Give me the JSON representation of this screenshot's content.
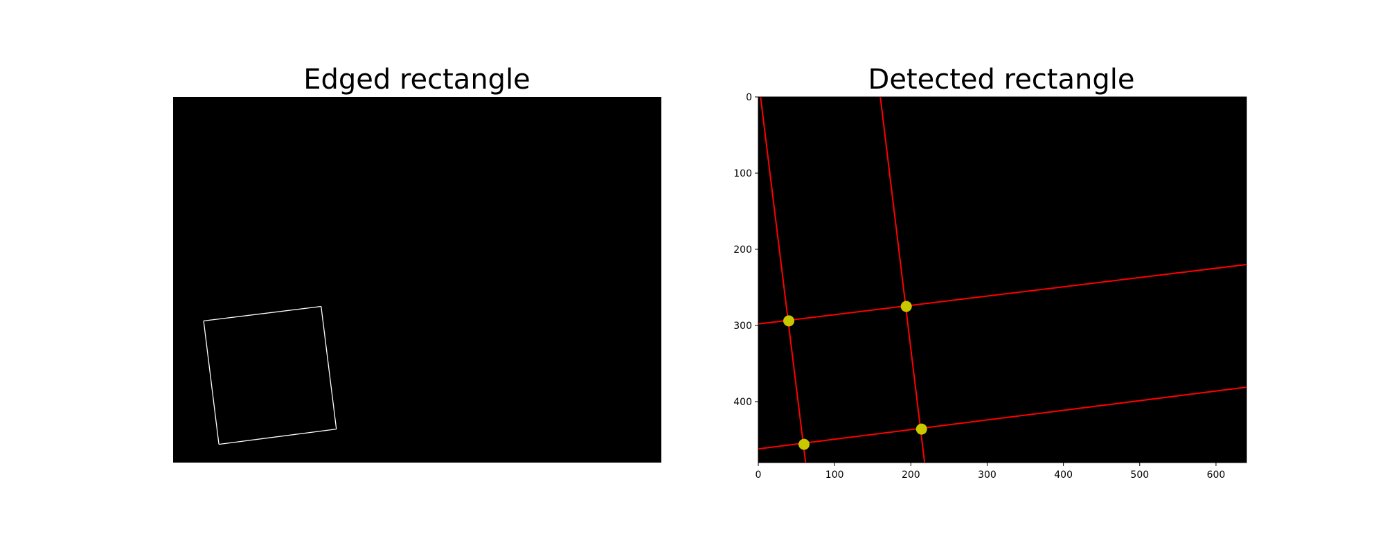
{
  "chart_data": [
    {
      "type": "image",
      "title": "Edged rectangle",
      "axes": "off",
      "image_size": [
        640,
        480
      ],
      "background": "#000000",
      "edge_color": "#ffffff",
      "edge_polygon": [
        [
          40,
          294
        ],
        [
          194,
          275
        ],
        [
          214,
          436
        ],
        [
          60,
          456
        ]
      ]
    },
    {
      "type": "image",
      "title": "Detected rectangle",
      "xlim": [
        0,
        640
      ],
      "ylim": [
        480,
        0
      ],
      "xticks": [
        0,
        100,
        200,
        300,
        400,
        500,
        600
      ],
      "yticks": [
        0,
        100,
        200,
        300,
        400
      ],
      "background": "#000000",
      "line_color": "#ff0000",
      "point_color": "#c8c800",
      "lines": [
        [
          [
            3,
            0
          ],
          [
            62,
            480
          ]
        ],
        [
          [
            160,
            0
          ],
          [
            218,
            480
          ]
        ],
        [
          [
            0,
            298
          ],
          [
            640,
            220
          ]
        ],
        [
          [
            0,
            462
          ],
          [
            640,
            381
          ]
        ]
      ],
      "corners": [
        [
          40,
          294
        ],
        [
          194,
          275
        ],
        [
          214,
          436
        ],
        [
          60,
          456
        ]
      ]
    }
  ]
}
